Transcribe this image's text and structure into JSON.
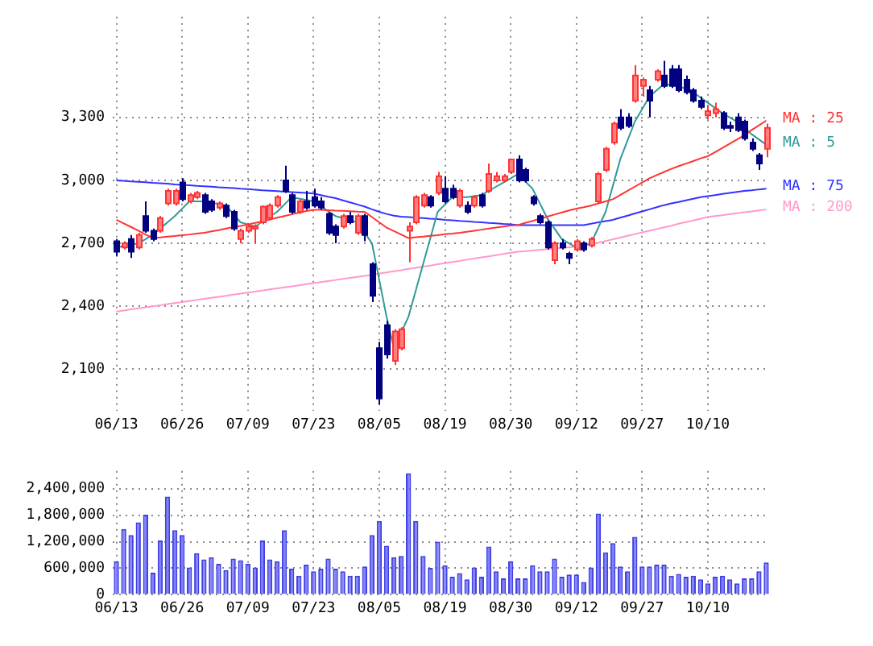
{
  "chart_data": [
    {
      "type": "candlestick",
      "categories": [
        "06/13",
        null,
        null,
        null,
        null,
        null,
        null,
        null,
        null,
        "06/26",
        null,
        null,
        null,
        null,
        null,
        null,
        null,
        null,
        "07/09",
        null,
        null,
        null,
        null,
        null,
        null,
        null,
        null,
        "07/23",
        null,
        null,
        null,
        null,
        null,
        null,
        null,
        null,
        "08/05",
        null,
        null,
        null,
        null,
        null,
        null,
        null,
        null,
        "08/19",
        null,
        null,
        null,
        null,
        null,
        null,
        null,
        null,
        "08/30",
        null,
        null,
        null,
        null,
        null,
        null,
        null,
        null,
        "09/12",
        null,
        null,
        null,
        null,
        null,
        null,
        null,
        null,
        "09/27",
        null,
        null,
        null,
        null,
        null,
        null,
        null,
        null,
        "10/10",
        null,
        null,
        null,
        null,
        null,
        null,
        null,
        null
      ],
      "ohlc": [
        [
          2710,
          2720,
          2640,
          2660
        ],
        [
          2680,
          2710,
          2670,
          2700
        ],
        [
          2720,
          2740,
          2630,
          2660
        ],
        [
          2680,
          2750,
          2670,
          2740
        ],
        [
          2830,
          2900,
          2750,
          2760
        ],
        [
          2760,
          2770,
          2710,
          2720
        ],
        [
          2760,
          2830,
          2750,
          2820
        ],
        [
          2890,
          2960,
          2880,
          2950
        ],
        [
          2890,
          2960,
          2880,
          2950
        ],
        [
          2990,
          3010,
          2900,
          2910
        ],
        [
          2900,
          2940,
          2890,
          2930
        ],
        [
          2920,
          2950,
          2910,
          2940
        ],
        [
          2930,
          2940,
          2840,
          2850
        ],
        [
          2900,
          2910,
          2850,
          2860
        ],
        [
          2870,
          2900,
          2860,
          2890
        ],
        [
          2880,
          2890,
          2820,
          2830
        ],
        [
          2850,
          2860,
          2760,
          2770
        ],
        [
          2720,
          2770,
          2700,
          2760
        ],
        [
          2760,
          2790,
          2750,
          2780
        ],
        [
          2770,
          2790,
          2700,
          2780
        ],
        [
          2800,
          2880,
          2790,
          2875
        ],
        [
          2820,
          2890,
          2810,
          2880
        ],
        [
          2880,
          2930,
          2870,
          2920
        ],
        [
          3000,
          3070,
          2940,
          2950
        ],
        [
          2930,
          2940,
          2840,
          2850
        ],
        [
          2850,
          2910,
          2840,
          2900
        ],
        [
          2900,
          2950,
          2860,
          2870
        ],
        [
          2920,
          2960,
          2870,
          2880
        ],
        [
          2900,
          2920,
          2860,
          2870
        ],
        [
          2840,
          2850,
          2740,
          2750
        ],
        [
          2780,
          2790,
          2700,
          2740
        ],
        [
          2780,
          2840,
          2770,
          2830
        ],
        [
          2830,
          2850,
          2790,
          2800
        ],
        [
          2750,
          2840,
          2740,
          2830
        ],
        [
          2830,
          2840,
          2710,
          2740
        ],
        [
          2600,
          2610,
          2420,
          2450
        ],
        [
          2200,
          2230,
          1930,
          1960
        ],
        [
          2310,
          2330,
          2150,
          2170
        ],
        [
          2140,
          2290,
          2120,
          2280
        ],
        [
          2200,
          2300,
          2190,
          2290
        ],
        [
          2760,
          2800,
          2610,
          2780
        ],
        [
          2800,
          2930,
          2790,
          2920
        ],
        [
          2880,
          2940,
          2870,
          2930
        ],
        [
          2920,
          2930,
          2870,
          2880
        ],
        [
          2940,
          3040,
          2930,
          3020
        ],
        [
          2960,
          3020,
          2890,
          2900
        ],
        [
          2960,
          2980,
          2910,
          2920
        ],
        [
          2880,
          2960,
          2870,
          2950
        ],
        [
          2880,
          2900,
          2840,
          2850
        ],
        [
          2880,
          2930,
          2870,
          2920
        ],
        [
          2930,
          2940,
          2870,
          2880
        ],
        [
          2950,
          3080,
          2940,
          3030
        ],
        [
          3000,
          3040,
          2990,
          3020
        ],
        [
          3000,
          3030,
          2990,
          3020
        ],
        [
          3040,
          3100,
          3030,
          3100
        ],
        [
          3100,
          3120,
          2990,
          3000
        ],
        [
          3050,
          3060,
          2990,
          3000
        ],
        [
          2920,
          2930,
          2880,
          2890
        ],
        [
          2830,
          2840,
          2790,
          2800
        ],
        [
          2800,
          2810,
          2670,
          2680
        ],
        [
          2620,
          2710,
          2600,
          2700
        ],
        [
          2700,
          2720,
          2670,
          2680
        ],
        [
          2650,
          2660,
          2600,
          2630
        ],
        [
          2670,
          2720,
          2660,
          2710
        ],
        [
          2700,
          2710,
          2660,
          2670
        ],
        [
          2690,
          2730,
          2680,
          2720
        ],
        [
          2900,
          3040,
          2890,
          3030
        ],
        [
          3050,
          3160,
          3040,
          3150
        ],
        [
          3180,
          3280,
          3170,
          3270
        ],
        [
          3300,
          3340,
          3240,
          3250
        ],
        [
          3300,
          3320,
          3250,
          3260
        ],
        [
          3380,
          3550,
          3370,
          3500
        ],
        [
          3450,
          3490,
          3400,
          3480
        ],
        [
          3430,
          3450,
          3300,
          3380
        ],
        [
          3480,
          3530,
          3470,
          3520
        ],
        [
          3500,
          3570,
          3440,
          3450
        ],
        [
          3530,
          3550,
          3440,
          3450
        ],
        [
          3530,
          3550,
          3420,
          3430
        ],
        [
          3480,
          3500,
          3410,
          3420
        ],
        [
          3430,
          3440,
          3370,
          3380
        ],
        [
          3380,
          3400,
          3340,
          3350
        ],
        [
          3310,
          3360,
          3290,
          3330
        ],
        [
          3320,
          3370,
          3300,
          3340
        ],
        [
          3320,
          3330,
          3240,
          3250
        ],
        [
          3260,
          3280,
          3230,
          3250
        ],
        [
          3300,
          3320,
          3230,
          3240
        ],
        [
          3280,
          3290,
          3190,
          3200
        ],
        [
          3180,
          3200,
          3140,
          3150
        ],
        [
          3120,
          3130,
          3050,
          3080
        ],
        [
          3150,
          3270,
          3110,
          3250
        ]
      ],
      "series": [
        {
          "name": "MA : 25",
          "type": "line",
          "color": "#ff3333",
          "values": [
            2812,
            2795,
            2778,
            2760,
            2742,
            2725,
            2728,
            2732,
            2735,
            2739,
            2742,
            2746,
            2750,
            2757,
            2763,
            2770,
            2777,
            2783,
            2790,
            2797,
            2805,
            2813,
            2822,
            2830,
            2838,
            2846,
            2854,
            2860,
            2860,
            2858,
            2856,
            2855,
            2853,
            2851,
            2850,
            2825,
            2800,
            2775,
            2758,
            2742,
            2725,
            2729,
            2732,
            2736,
            2739,
            2743,
            2746,
            2750,
            2755,
            2760,
            2765,
            2770,
            2775,
            2780,
            2785,
            2787,
            2797,
            2807,
            2817,
            2827,
            2837,
            2847,
            2857,
            2865,
            2872,
            2880,
            2890,
            2900,
            2910,
            2930,
            2950,
            2970,
            2990,
            3010,
            3025,
            3040,
            3055,
            3068,
            3080,
            3092,
            3105,
            3115,
            3135,
            3155,
            3175,
            3195,
            3215,
            3240,
            3262,
            3285
          ]
        },
        {
          "name": "MA : 5",
          "type": "line",
          "color": "#339999",
          "values": [
            2680,
            2687,
            2693,
            2700,
            2720,
            2740,
            2770,
            2800,
            2830,
            2865,
            2900,
            2900,
            2900,
            2893,
            2887,
            2880,
            2840,
            2800,
            2790,
            2780,
            2803,
            2827,
            2850,
            2885,
            2920,
            2913,
            2907,
            2900,
            2877,
            2853,
            2830,
            2820,
            2810,
            2800,
            2750,
            2700,
            2525,
            2350,
            2200,
            2275,
            2350,
            2475,
            2600,
            2725,
            2850,
            2885,
            2920,
            2920,
            2920,
            2925,
            2930,
            2950,
            2970,
            2990,
            3010,
            3030,
            2995,
            2960,
            2890,
            2820,
            2770,
            2720,
            2700,
            2680,
            2690,
            2700,
            2775,
            2850,
            2975,
            3100,
            3190,
            3280,
            3340,
            3400,
            3430,
            3460,
            3455,
            3450,
            3435,
            3420,
            3395,
            3370,
            3345,
            3320,
            3300,
            3280,
            3250,
            3220,
            3195,
            3170
          ]
        },
        {
          "name": "MA : 75",
          "type": "line",
          "color": "#3333ff",
          "values": [
            3000,
            2998,
            2995,
            2993,
            2991,
            2988,
            2986,
            2984,
            2981,
            2979,
            2977,
            2974,
            2972,
            2970,
            2967,
            2965,
            2963,
            2960,
            2958,
            2956,
            2953,
            2951,
            2949,
            2946,
            2944,
            2942,
            2940,
            2937,
            2930,
            2922,
            2915,
            2905,
            2895,
            2885,
            2875,
            2862,
            2850,
            2840,
            2832,
            2827,
            2825,
            2822,
            2820,
            2817,
            2815,
            2812,
            2810,
            2807,
            2805,
            2802,
            2800,
            2797,
            2795,
            2792,
            2790,
            2787,
            2787,
            2787,
            2787,
            2787,
            2787,
            2787,
            2787,
            2787,
            2787,
            2793,
            2800,
            2806,
            2812,
            2822,
            2832,
            2842,
            2852,
            2862,
            2872,
            2882,
            2890,
            2897,
            2905,
            2912,
            2920,
            2925,
            2930,
            2935,
            2940,
            2945,
            2950,
            2953,
            2957,
            2960
          ]
        },
        {
          "name": "MA : 200",
          "type": "line",
          "color": "#ff99cc",
          "values": [
            2375,
            2380,
            2385,
            2390,
            2395,
            2400,
            2405,
            2410,
            2415,
            2420,
            2425,
            2430,
            2435,
            2440,
            2445,
            2450,
            2455,
            2460,
            2465,
            2470,
            2475,
            2480,
            2485,
            2490,
            2495,
            2500,
            2505,
            2510,
            2515,
            2520,
            2525,
            2530,
            2535,
            2540,
            2545,
            2550,
            2556,
            2561,
            2567,
            2572,
            2578,
            2583,
            2589,
            2594,
            2600,
            2605,
            2611,
            2616,
            2622,
            2627,
            2633,
            2638,
            2644,
            2649,
            2655,
            2660,
            2663,
            2666,
            2669,
            2672,
            2675,
            2678,
            2681,
            2684,
            2687,
            2695,
            2703,
            2711,
            2719,
            2727,
            2736,
            2744,
            2752,
            2760,
            2768,
            2776,
            2784,
            2793,
            2801,
            2809,
            2817,
            2825,
            2830,
            2834,
            2839,
            2843,
            2848,
            2852,
            2857,
            2861
          ]
        }
      ],
      "ylim": [
        1900,
        3780
      ],
      "yticks": [
        {
          "value": 2100,
          "label": "2,100"
        },
        {
          "value": 2400,
          "label": "2,400"
        },
        {
          "value": 2700,
          "label": "2,700"
        },
        {
          "value": 3000,
          "label": "3,000"
        },
        {
          "value": 3300,
          "label": "3,300"
        }
      ],
      "grid": true,
      "legend": "right"
    },
    {
      "type": "bar",
      "categories": [
        "06/13",
        null,
        null,
        null,
        null,
        null,
        null,
        null,
        null,
        "06/26",
        null,
        null,
        null,
        null,
        null,
        null,
        null,
        null,
        "07/09",
        null,
        null,
        null,
        null,
        null,
        null,
        null,
        null,
        "07/23",
        null,
        null,
        null,
        null,
        null,
        null,
        null,
        null,
        "08/05",
        null,
        null,
        null,
        null,
        null,
        null,
        null,
        null,
        "08/19",
        null,
        null,
        null,
        null,
        null,
        null,
        null,
        null,
        "08/30",
        null,
        null,
        null,
        null,
        null,
        null,
        null,
        null,
        "09/12",
        null,
        null,
        null,
        null,
        null,
        null,
        null,
        null,
        "09/27",
        null,
        null,
        null,
        null,
        null,
        null,
        null,
        null,
        "10/10",
        null,
        null,
        null,
        null,
        null,
        null,
        null,
        null
      ],
      "values": [
        760000,
        1490000,
        1350000,
        1640000,
        1810000,
        500000,
        1230000,
        2220000,
        1460000,
        1350000,
        620000,
        940000,
        800000,
        850000,
        700000,
        560000,
        820000,
        780000,
        700000,
        620000,
        1230000,
        800000,
        760000,
        1460000,
        590000,
        430000,
        680000,
        530000,
        590000,
        820000,
        590000,
        530000,
        430000,
        430000,
        640000,
        1350000,
        1670000,
        1110000,
        850000,
        880000,
        2750000,
        1670000,
        880000,
        610000,
        1200000,
        670000,
        410000,
        490000,
        350000,
        620000,
        410000,
        1090000,
        530000,
        370000,
        760000,
        370000,
        370000,
        670000,
        530000,
        530000,
        820000,
        410000,
        460000,
        460000,
        290000,
        620000,
        1840000,
        960000,
        1170000,
        640000,
        530000,
        1310000,
        640000,
        640000,
        680000,
        680000,
        430000,
        470000,
        410000,
        430000,
        350000,
        260000,
        410000,
        430000,
        350000,
        260000,
        370000,
        370000,
        530000,
        730000
      ],
      "color": "#8080ff",
      "ylim": [
        0,
        2800000
      ],
      "yticks": [
        0,
        {
          "value": 600000,
          "label": "600,000"
        },
        {
          "value": 1200000,
          "label": "1,200,000"
        },
        {
          "value": 1800000,
          "label": "1,800,000"
        },
        {
          "value": 2400000,
          "label": "2,400,000"
        }
      ],
      "grid": true
    }
  ]
}
